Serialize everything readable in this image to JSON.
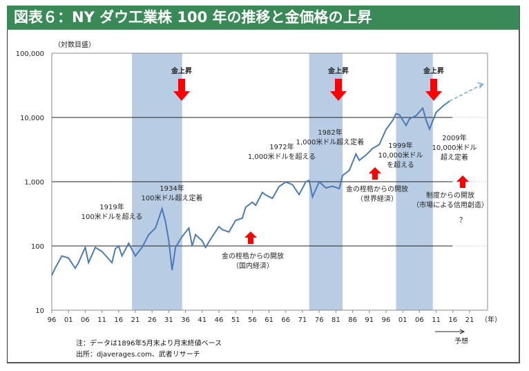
{
  "title": "図表６：NY ダウ工業株 100 年の推移と金価格の上昇",
  "notes": {
    "note": "注：データは1896年5月末より月末終値ベース",
    "source": "出所：djaverages.com、武者リサーチ"
  },
  "chart_data": {
    "type": "line",
    "title": "NY ダウ工業株 100 年の推移と金価格の上昇",
    "ylabel": "（対数目盛）",
    "xlabel": "（年）",
    "yscale": "log",
    "ylim": [
      10,
      100000
    ],
    "yticks": [
      {
        "v": 100000,
        "label": "100,000"
      },
      {
        "v": 10000,
        "label": "10,000"
      },
      {
        "v": 1000,
        "label": "1,000"
      },
      {
        "v": 100,
        "label": "100"
      },
      {
        "v": 10,
        "label": "10"
      }
    ],
    "xticks": [
      "96",
      "01",
      "06",
      "11",
      "16",
      "21",
      "26",
      "31",
      "36",
      "41",
      "46",
      "51",
      "56",
      "61",
      "66",
      "71",
      "76",
      "81",
      "86",
      "91",
      "96",
      "01",
      "06",
      "11",
      "16",
      "21"
    ],
    "xlim": [
      1896,
      2026
    ],
    "shaded_periods": [
      [
        1920,
        1935
      ],
      [
        1973,
        1983
      ],
      [
        1999,
        2010
      ]
    ],
    "gold_label": "金上昇",
    "series": [
      {
        "name": "NYダウ",
        "x": [
          1896,
          1897,
          1899,
          1901,
          1903,
          1904,
          1906,
          1907,
          1909,
          1911,
          1914,
          1915,
          1916,
          1917,
          1919,
          1921,
          1923,
          1925,
          1927,
          1929,
          1930,
          1931,
          1932,
          1933,
          1935,
          1937,
          1938,
          1939,
          1941,
          1942,
          1944,
          1946,
          1947,
          1949,
          1951,
          1953,
          1954,
          1956,
          1957,
          1959,
          1960,
          1962,
          1964,
          1966,
          1968,
          1970,
          1972,
          1973,
          1974,
          1976,
          1978,
          1980,
          1982,
          1983,
          1985,
          1987,
          1988,
          1990,
          1992,
          1994,
          1996,
          1998,
          1999,
          2000,
          2002,
          2003,
          2005,
          2007,
          2008,
          2009,
          2011,
          2013,
          2015
        ],
        "y": [
          35,
          45,
          70,
          65,
          45,
          55,
          95,
          55,
          95,
          82,
          55,
          90,
          100,
          70,
          110,
          70,
          95,
          150,
          190,
          380,
          240,
          120,
          42,
          95,
          140,
          190,
          100,
          150,
          120,
          95,
          140,
          200,
          180,
          165,
          250,
          270,
          400,
          480,
          430,
          680,
          620,
          550,
          840,
          990,
          900,
          630,
          1000,
          1050,
          580,
          1000,
          800,
          850,
          780,
          1250,
          1500,
          2700,
          2150,
          2600,
          3300,
          3800,
          6500,
          9000,
          11500,
          11000,
          7500,
          9500,
          10700,
          14000,
          9000,
          6600,
          12000,
          15000,
          18000
        ]
      },
      {
        "name": "予想",
        "x": [
          2015,
          2025
        ],
        "y": [
          18000,
          33000
        ],
        "dashed": true
      }
    ],
    "annotations": [
      "1919年",
      "100米ドルを超える",
      "1934年",
      "100米ドル超え定着",
      "1972年",
      "1,000米ドルを超える",
      "1982年",
      "1,000米ドル超え定着",
      "1999年",
      "10,000米ドル",
      "を超える",
      "2009年",
      "10,000米ドル",
      "超え定着",
      "金の桎梏からの開放",
      "（国内経済）",
      "金の桎梏からの開放",
      "（世界経済）",
      "制度からの開放",
      "（市場による信用創造）",
      "？",
      "予想"
    ]
  },
  "colors": {
    "header": "#3a8a58",
    "line": "#4a7ab5",
    "band": "#b8cce4",
    "arrow": "#ff0000"
  }
}
